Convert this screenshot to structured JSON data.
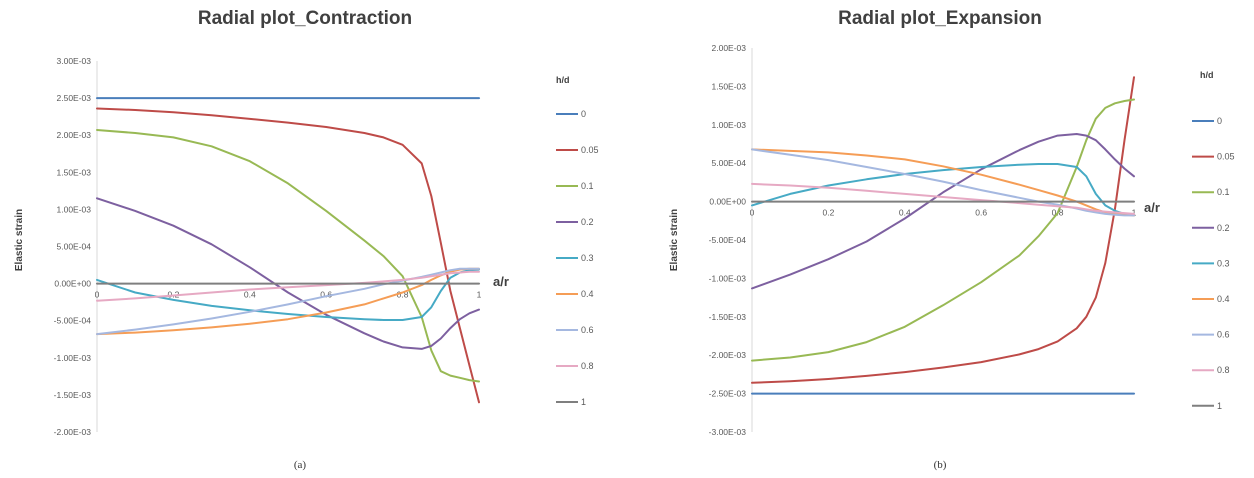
{
  "chart_data": [
    {
      "type": "line",
      "title": "Radial plot_Contraction",
      "xlabel": "a/r",
      "ylabel": "Elastic strain",
      "caption": "(a)",
      "legend_title": "h/d",
      "legend_position": "right",
      "grid": false,
      "xlim": [
        0,
        1
      ],
      "ylim": [
        -0.002,
        0.003
      ],
      "x_ticks": [
        0,
        0.2,
        0.4,
        0.6,
        0.8,
        1
      ],
      "x_tick_labels": [
        "0",
        "0.2",
        "0.4",
        "0.6",
        "0.8",
        "1"
      ],
      "y_ticks": [
        0.003,
        0.0025,
        0.002,
        0.0015,
        0.001,
        0.0005,
        0,
        -0.0005,
        -0.001,
        -0.0015,
        -0.002
      ],
      "y_tick_labels": [
        "3.00E-03",
        "2.50E-03",
        "2.00E-03",
        "1.50E-03",
        "1.00E-03",
        "5.00E-04",
        "0.00E+00",
        "-5.00E-04",
        "-1.00E-03",
        "-1.50E-03",
        "-2.00E-03"
      ],
      "x": [
        0,
        0.1,
        0.2,
        0.3,
        0.4,
        0.5,
        0.6,
        0.7,
        0.75,
        0.8,
        0.85,
        0.875,
        0.9,
        0.925,
        0.95,
        0.975,
        1
      ],
      "series": [
        {
          "name": "0",
          "color": "#4a7ebb",
          "values": [
            0.0025,
            0.0025,
            0.0025,
            0.0025,
            0.0025,
            0.0025,
            0.0025,
            0.0025,
            0.0025,
            0.0025,
            0.0025,
            0.0025,
            0.0025,
            0.0025,
            0.0025,
            0.0025,
            0.0025
          ]
        },
        {
          "name": "0.05",
          "color": "#be4b48",
          "values": [
            0.00236,
            0.00234,
            0.00231,
            0.00227,
            0.00222,
            0.00217,
            0.00211,
            0.00203,
            0.00197,
            0.00187,
            0.00162,
            0.00118,
            0.00055,
            -0.0001,
            -0.0006,
            -0.0011,
            -0.0016
          ]
        },
        {
          "name": "0.1",
          "color": "#98b954",
          "values": [
            0.00207,
            0.00203,
            0.00197,
            0.00185,
            0.00165,
            0.00135,
            0.00098,
            0.00058,
            0.00037,
            0.0001,
            -0.00045,
            -0.0009,
            -0.00118,
            -0.00124,
            -0.00127,
            -0.0013,
            -0.00132
          ]
        },
        {
          "name": "0.2",
          "color": "#7d60a0",
          "values": [
            0.00115,
            0.00098,
            0.00078,
            0.00053,
            0.00022,
            -0.00012,
            -0.00042,
            -0.00067,
            -0.00078,
            -0.00086,
            -0.00088,
            -0.00084,
            -0.00074,
            -0.0006,
            -0.00048,
            -0.0004,
            -0.00035
          ]
        },
        {
          "name": "0.3",
          "color": "#46aac5",
          "values": [
            5e-05,
            -0.00012,
            -0.00022,
            -0.0003,
            -0.00036,
            -0.00041,
            -0.00045,
            -0.00048,
            -0.00049,
            -0.00049,
            -0.00045,
            -0.00032,
            -0.0001,
            8e-05,
            0.00015,
            0.00018,
            0.00019
          ]
        },
        {
          "name": "0.4",
          "color": "#f59d56",
          "values": [
            -0.00068,
            -0.00066,
            -0.00063,
            -0.00059,
            -0.00054,
            -0.00048,
            -0.00039,
            -0.00028,
            -0.0002,
            -0.00012,
            -2e-05,
            5e-05,
            0.00011,
            0.00016,
            0.00019,
            0.0002,
            0.0002
          ]
        },
        {
          "name": "0.6",
          "color": "#a5b8e0",
          "values": [
            -0.00068,
            -0.00062,
            -0.00055,
            -0.00047,
            -0.00038,
            -0.00028,
            -0.00017,
            -7e-05,
            -1e-05,
            4e-05,
            9e-05,
            0.00012,
            0.00015,
            0.00018,
            0.0002,
            0.0002,
            0.0002
          ]
        },
        {
          "name": "0.8",
          "color": "#e6a9c3",
          "values": [
            -0.00023,
            -0.0002,
            -0.00016,
            -0.00012,
            -8e-05,
            -5e-05,
            -2e-05,
            1e-05,
            3e-05,
            5e-05,
            8e-05,
            0.0001,
            0.00012,
            0.00014,
            0.00015,
            0.00016,
            0.00016
          ]
        },
        {
          "name": "1",
          "color": "#7f7f7f",
          "values": [
            0,
            0,
            0,
            0,
            0,
            0,
            0,
            0,
            0,
            0,
            0,
            0,
            0,
            0,
            0,
            0,
            0
          ]
        }
      ]
    },
    {
      "type": "line",
      "title": "Radial plot_Expansion",
      "xlabel": "a/r",
      "ylabel": "Elastic strain",
      "caption": "(b)",
      "legend_title": "h/d",
      "legend_position": "right",
      "grid": false,
      "xlim": [
        0,
        1
      ],
      "ylim": [
        -0.003,
        0.002
      ],
      "x_ticks": [
        0,
        0.2,
        0.4,
        0.6,
        0.8,
        1
      ],
      "x_tick_labels": [
        "0",
        "0.2",
        "0.4",
        "0.6",
        "0.8",
        "1"
      ],
      "y_ticks": [
        0.002,
        0.0015,
        0.001,
        0.0005,
        0,
        -0.0005,
        -0.001,
        -0.0015,
        -0.002,
        -0.0025,
        -0.003
      ],
      "y_tick_labels": [
        "2.00E-03",
        "1.50E-03",
        "1.00E-03",
        "5.00E-04",
        "0.00E+00",
        "-5.00E-04",
        "-1.00E-03",
        "-1.50E-03",
        "-2.00E-03",
        "-2.50E-03",
        "-3.00E-03"
      ],
      "x": [
        0,
        0.1,
        0.2,
        0.3,
        0.4,
        0.5,
        0.6,
        0.7,
        0.75,
        0.8,
        0.85,
        0.875,
        0.9,
        0.925,
        0.95,
        0.975,
        1
      ],
      "series": [
        {
          "name": "0",
          "color": "#4a7ebb",
          "values": [
            -0.0025,
            -0.0025,
            -0.0025,
            -0.0025,
            -0.0025,
            -0.0025,
            -0.0025,
            -0.0025,
            -0.0025,
            -0.0025,
            -0.0025,
            -0.0025,
            -0.0025,
            -0.0025,
            -0.0025,
            -0.0025,
            -0.0025
          ]
        },
        {
          "name": "0.05",
          "color": "#be4b48",
          "values": [
            -0.00236,
            -0.00234,
            -0.00231,
            -0.00227,
            -0.00222,
            -0.00216,
            -0.00209,
            -0.00199,
            -0.00192,
            -0.00182,
            -0.00165,
            -0.0015,
            -0.00125,
            -0.0008,
            -0.0001,
            0.0008,
            0.00162
          ]
        },
        {
          "name": "0.1",
          "color": "#98b954",
          "values": [
            -0.00207,
            -0.00203,
            -0.00196,
            -0.00183,
            -0.00163,
            -0.00135,
            -0.00105,
            -0.0007,
            -0.00045,
            -0.00015,
            0.00045,
            0.0008,
            0.00108,
            0.00122,
            0.00128,
            0.00131,
            0.00133
          ]
        },
        {
          "name": "0.2",
          "color": "#7d60a0",
          "values": [
            -0.00113,
            -0.00095,
            -0.00075,
            -0.00052,
            -0.00022,
            0.00012,
            0.00042,
            0.00067,
            0.00078,
            0.00086,
            0.00088,
            0.00086,
            0.0008,
            0.00068,
            0.00055,
            0.00043,
            0.00033
          ]
        },
        {
          "name": "0.3",
          "color": "#46aac5",
          "values": [
            -5e-05,
            0.0001,
            0.00021,
            0.00029,
            0.00036,
            0.00041,
            0.00045,
            0.00048,
            0.00049,
            0.00049,
            0.00045,
            0.00033,
            0.0001,
            -5e-05,
            -0.00012,
            -0.00016,
            -0.00018
          ]
        },
        {
          "name": "0.4",
          "color": "#f59d56",
          "values": [
            0.00068,
            0.00066,
            0.00064,
            0.0006,
            0.00055,
            0.00046,
            0.00035,
            0.00022,
            0.00015,
            8e-05,
            0,
            -5e-05,
            -0.0001,
            -0.00014,
            -0.00016,
            -0.00017,
            -0.00018
          ]
        },
        {
          "name": "0.6",
          "color": "#a5b8e0",
          "values": [
            0.00068,
            0.00061,
            0.00054,
            0.00045,
            0.00036,
            0.00026,
            0.00015,
            5e-05,
            0,
            -4e-05,
            -9e-05,
            -0.00012,
            -0.00014,
            -0.00016,
            -0.00017,
            -0.00018,
            -0.00018
          ]
        },
        {
          "name": "0.8",
          "color": "#e6a9c3",
          "values": [
            0.00023,
            0.00021,
            0.00018,
            0.00014,
            0.0001,
            6e-05,
            2e-05,
            -2e-05,
            -4e-05,
            -6e-05,
            -8e-05,
            -0.0001,
            -0.00012,
            -0.00013,
            -0.00014,
            -0.00015,
            -0.00016
          ]
        },
        {
          "name": "1",
          "color": "#7f7f7f",
          "values": [
            0,
            0,
            0,
            0,
            0,
            0,
            0,
            0,
            0,
            0,
            0,
            0,
            0,
            0,
            0,
            0,
            0
          ]
        }
      ]
    }
  ]
}
